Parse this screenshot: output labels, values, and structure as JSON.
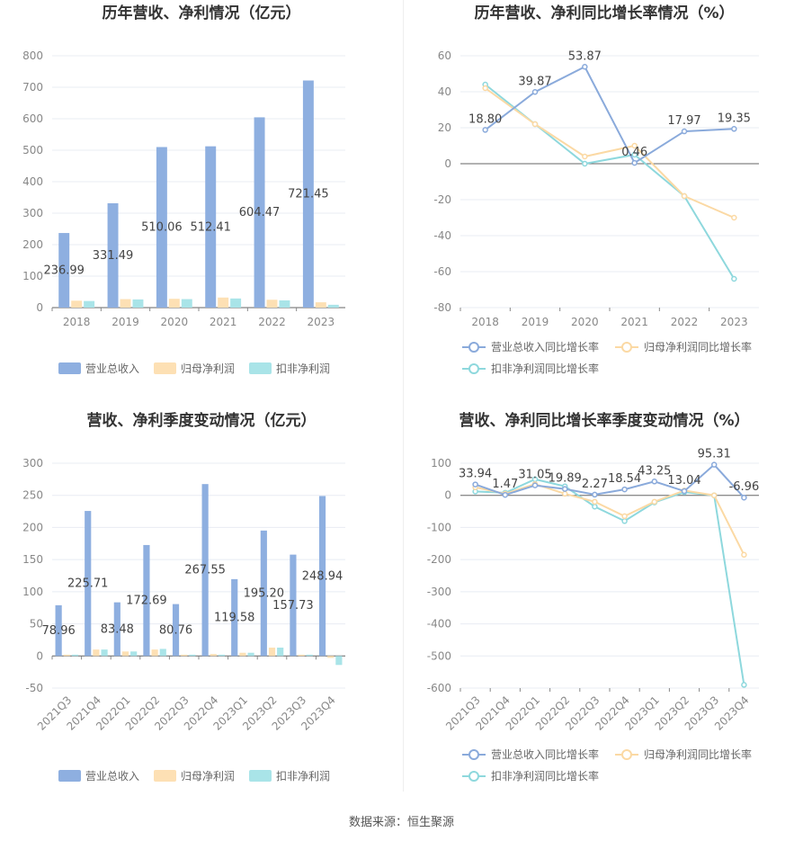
{
  "source_label": "数据来源：恒生聚源",
  "colors": {
    "revenue": "#8eafe0",
    "net_profit": "#fde0b4",
    "deducted_profit": "#a9e4e8",
    "revenue_line": "#8aaadb",
    "net_profit_line": "#fbd9a4",
    "deducted_profit_line": "#8ed8dd"
  },
  "chart_data": [
    {
      "id": "annual-bars",
      "type": "bar",
      "title": "历年营收、净利情况（亿元）",
      "categories": [
        "2018",
        "2019",
        "2020",
        "2021",
        "2022",
        "2023"
      ],
      "ylim": [
        0,
        800
      ],
      "yticks": [
        0,
        100,
        200,
        300,
        400,
        500,
        600,
        700,
        800
      ],
      "grid": true,
      "legend": "bottom",
      "series": [
        {
          "name": "营业总收入",
          "values": [
            236.99,
            331.49,
            510.06,
            512.41,
            604.47,
            721.45
          ],
          "labels": [
            "236.99",
            "331.49",
            "510.06",
            "512.41",
            "604.47",
            "721.45"
          ]
        },
        {
          "name": "归母净利润",
          "values": [
            22,
            27,
            28,
            32,
            25,
            17
          ]
        },
        {
          "name": "扣非净利润",
          "values": [
            21,
            26,
            27,
            29,
            23,
            9
          ]
        }
      ]
    },
    {
      "id": "annual-growth",
      "type": "line",
      "title": "历年营收、净利同比增长率情况（%）",
      "categories": [
        "2018",
        "2019",
        "2020",
        "2021",
        "2022",
        "2023"
      ],
      "ylim": [
        -80,
        60
      ],
      "yticks": [
        -80,
        -60,
        -40,
        -20,
        0,
        20,
        40,
        60
      ],
      "grid": true,
      "legend": "bottom",
      "series": [
        {
          "name": "营业总收入同比增长率",
          "values": [
            18.8,
            39.87,
            53.87,
            0.46,
            17.97,
            19.35
          ],
          "labels": [
            "18.80",
            "39.87",
            "53.87",
            "0.46",
            "17.97",
            "19.35"
          ]
        },
        {
          "name": "归母净利润同比增长率",
          "values": [
            42,
            22,
            4,
            10,
            -18,
            -30
          ]
        },
        {
          "name": "扣非净利润同比增长率",
          "values": [
            44,
            22,
            0,
            5,
            -18,
            -64
          ]
        }
      ]
    },
    {
      "id": "quarterly-bars",
      "type": "bar",
      "title": "营收、净利季度变动情况（亿元）",
      "categories": [
        "2021Q3",
        "2021Q4",
        "2022Q1",
        "2022Q2",
        "2022Q3",
        "2022Q4",
        "2023Q1",
        "2023Q2",
        "2023Q3",
        "2023Q4"
      ],
      "ylim": [
        -50,
        300
      ],
      "yticks": [
        -50,
        0,
        50,
        100,
        150,
        200,
        250,
        300
      ],
      "grid": true,
      "legend": "bottom",
      "series": [
        {
          "name": "营业总收入",
          "values": [
            78.96,
            225.71,
            83.48,
            172.69,
            80.76,
            267.55,
            119.58,
            195.2,
            157.73,
            248.94
          ],
          "labels": [
            "78.96",
            "225.71",
            "83.48",
            "172.69",
            "80.76",
            "267.55",
            "119.58",
            "195.20",
            "157.73",
            "248.94"
          ]
        },
        {
          "name": "归母净利润",
          "values": [
            2,
            10,
            7,
            10,
            2,
            3,
            5,
            13,
            2,
            -3
          ]
        },
        {
          "name": "扣非净利润",
          "values": [
            2,
            10,
            7,
            11,
            2,
            2,
            5,
            13,
            2,
            -14
          ]
        }
      ]
    },
    {
      "id": "quarterly-growth",
      "type": "line",
      "title": "营收、净利同比增长率季度变动情况（%）",
      "categories": [
        "2021Q3",
        "2021Q4",
        "2022Q1",
        "2022Q2",
        "2022Q3",
        "2022Q4",
        "2023Q1",
        "2023Q2",
        "2023Q3",
        "2023Q4"
      ],
      "ylim": [
        -600,
        100
      ],
      "yticks": [
        -600,
        -500,
        -400,
        -300,
        -200,
        -100,
        0,
        100
      ],
      "grid": true,
      "legend": "bottom",
      "series": [
        {
          "name": "营业总收入同比增长率",
          "values": [
            33.94,
            1.47,
            31.05,
            19.89,
            2.27,
            18.54,
            43.25,
            13.04,
            95.31,
            -6.96
          ],
          "labels": [
            "33.94",
            "1.47",
            "31.05",
            "19.89",
            "2.27",
            "18.54",
            "43.25",
            "13.04",
            "95.31",
            "-6.96"
          ]
        },
        {
          "name": "归母净利润同比增长率",
          "values": [
            25,
            5,
            35,
            5,
            -20,
            -65,
            -20,
            15,
            0,
            -185
          ]
        },
        {
          "name": "扣非净利润同比增长率",
          "values": [
            12,
            8,
            50,
            28,
            -35,
            -80,
            -22,
            10,
            0,
            -590
          ]
        }
      ]
    }
  ]
}
